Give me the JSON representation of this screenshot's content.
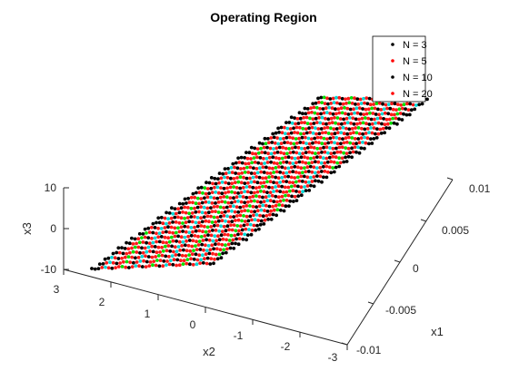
{
  "chart_data": {
    "type": "scatter",
    "title": "Operating Region",
    "xlabel": "x1",
    "ylabel": "x2",
    "zlabel": "x3",
    "xlim": [
      -0.01,
      0.01
    ],
    "ylim": [
      -3,
      3
    ],
    "zlim": [
      -10,
      10
    ],
    "x_ticks": [
      "-0.01",
      "-0.005",
      "0",
      "0.005",
      "0.01"
    ],
    "y_ticks": [
      "-3",
      "-2",
      "-1",
      "0",
      "1",
      "2",
      "3"
    ],
    "z_ticks": [
      "-10",
      "0",
      "10"
    ],
    "legend_position": "top-right",
    "grid": false,
    "series": [
      {
        "name": "N = 3",
        "color": "#000000"
      },
      {
        "name": "N = 5",
        "color": "#ff0000"
      },
      {
        "name": "N = 10",
        "color": "#000000"
      },
      {
        "name": "N = 20",
        "color": "#ff0000"
      }
    ],
    "inner_colors": [
      "#00e000",
      "#00d8d8"
    ]
  }
}
